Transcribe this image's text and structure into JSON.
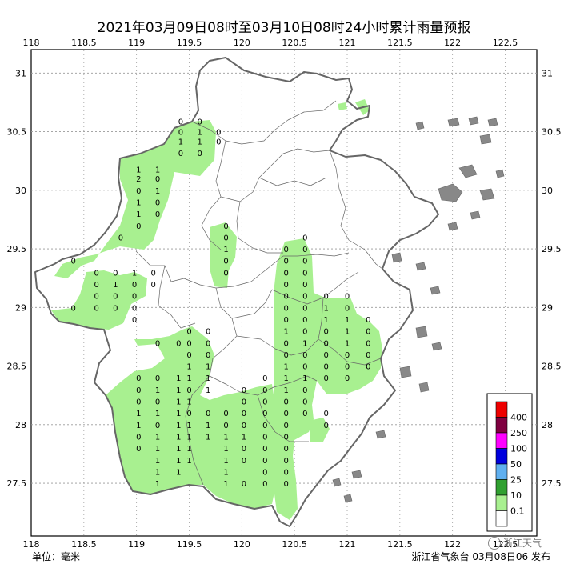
{
  "title": "2021年03月09日08时至03月10日08时24小时累计雨量预报",
  "unit_label": "单位：毫米",
  "issuer": "浙江省气象台 03月08日06 发布",
  "watermark": "浙江天气",
  "lon_ticks": [
    "118",
    "118.5",
    "119",
    "119.5",
    "120",
    "120.5",
    "121",
    "121.5",
    "122",
    "122.5"
  ],
  "lon_values": [
    118,
    118.5,
    119,
    119.5,
    120,
    120.5,
    121,
    121.5,
    122,
    122.5
  ],
  "lat_ticks": [
    "31",
    "30.5",
    "30",
    "29.5",
    "29",
    "28.5",
    "28",
    "27.5"
  ],
  "lat_values": [
    31,
    30.5,
    30,
    29.5,
    29,
    28.5,
    28,
    27.5
  ],
  "legend": {
    "labels": [
      "400",
      "250",
      "100",
      "50",
      "25",
      "10",
      "0.1"
    ],
    "colors": [
      "#ee0000",
      "#7f0040",
      "#ff00ff",
      "#0000dd",
      "#60b0f0",
      "#30a030",
      "#a8f090",
      "#ffffff"
    ]
  },
  "colors": {
    "rain_light": "#a8f090",
    "border": "#666666",
    "grid": "#9a9a9a"
  },
  "chart_data": {
    "type": "map",
    "xlim": [
      118,
      122.8
    ],
    "ylim": [
      27.05,
      31.2
    ],
    "values": [
      {
        "lon": 119.42,
        "lat": 30.59,
        "v": "0"
      },
      {
        "lon": 119.6,
        "lat": 30.59,
        "v": "0"
      },
      {
        "lon": 119.42,
        "lat": 30.5,
        "v": "0"
      },
      {
        "lon": 119.6,
        "lat": 30.5,
        "v": "1"
      },
      {
        "lon": 119.78,
        "lat": 30.5,
        "v": "0"
      },
      {
        "lon": 119.42,
        "lat": 30.42,
        "v": "1"
      },
      {
        "lon": 119.6,
        "lat": 30.42,
        "v": "1"
      },
      {
        "lon": 119.78,
        "lat": 30.42,
        "v": "0"
      },
      {
        "lon": 119.42,
        "lat": 30.32,
        "v": "0"
      },
      {
        "lon": 119.6,
        "lat": 30.32,
        "v": "0"
      },
      {
        "lon": 119.02,
        "lat": 30.18,
        "v": "1"
      },
      {
        "lon": 119.2,
        "lat": 30.18,
        "v": "1"
      },
      {
        "lon": 119.02,
        "lat": 30.1,
        "v": "2"
      },
      {
        "lon": 119.2,
        "lat": 30.1,
        "v": "0"
      },
      {
        "lon": 119.02,
        "lat": 30.0,
        "v": "0"
      },
      {
        "lon": 119.2,
        "lat": 30.0,
        "v": "1"
      },
      {
        "lon": 119.02,
        "lat": 29.9,
        "v": "1"
      },
      {
        "lon": 119.2,
        "lat": 29.9,
        "v": "0"
      },
      {
        "lon": 119.02,
        "lat": 29.8,
        "v": "1"
      },
      {
        "lon": 119.2,
        "lat": 29.8,
        "v": "0"
      },
      {
        "lon": 119.02,
        "lat": 29.7,
        "v": "0"
      },
      {
        "lon": 118.85,
        "lat": 29.6,
        "v": "0"
      },
      {
        "lon": 119.85,
        "lat": 29.7,
        "v": "0"
      },
      {
        "lon": 119.85,
        "lat": 29.6,
        "v": "0"
      },
      {
        "lon": 119.85,
        "lat": 29.5,
        "v": "1"
      },
      {
        "lon": 119.85,
        "lat": 29.4,
        "v": "0"
      },
      {
        "lon": 119.85,
        "lat": 29.3,
        "v": "0"
      },
      {
        "lon": 118.4,
        "lat": 29.4,
        "v": "0"
      },
      {
        "lon": 118.62,
        "lat": 29.3,
        "v": "0"
      },
      {
        "lon": 118.8,
        "lat": 29.3,
        "v": "0"
      },
      {
        "lon": 118.98,
        "lat": 29.3,
        "v": "1"
      },
      {
        "lon": 119.16,
        "lat": 29.3,
        "v": "0"
      },
      {
        "lon": 118.62,
        "lat": 29.2,
        "v": "0"
      },
      {
        "lon": 118.8,
        "lat": 29.2,
        "v": "1"
      },
      {
        "lon": 118.98,
        "lat": 29.2,
        "v": "0"
      },
      {
        "lon": 119.16,
        "lat": 29.2,
        "v": "0"
      },
      {
        "lon": 118.62,
        "lat": 29.1,
        "v": "0"
      },
      {
        "lon": 118.8,
        "lat": 29.1,
        "v": "0"
      },
      {
        "lon": 118.98,
        "lat": 29.1,
        "v": "0"
      },
      {
        "lon": 118.4,
        "lat": 29.0,
        "v": "0"
      },
      {
        "lon": 118.62,
        "lat": 29.0,
        "v": "0"
      },
      {
        "lon": 118.8,
        "lat": 29.0,
        "v": "0"
      },
      {
        "lon": 118.98,
        "lat": 29.0,
        "v": "0"
      },
      {
        "lon": 118.98,
        "lat": 28.9,
        "v": "0"
      },
      {
        "lon": 120.6,
        "lat": 29.6,
        "v": "0"
      },
      {
        "lon": 120.42,
        "lat": 29.5,
        "v": "0"
      },
      {
        "lon": 120.6,
        "lat": 29.5,
        "v": "0"
      },
      {
        "lon": 120.42,
        "lat": 29.4,
        "v": "0"
      },
      {
        "lon": 120.6,
        "lat": 29.4,
        "v": "0"
      },
      {
        "lon": 120.42,
        "lat": 29.3,
        "v": "0"
      },
      {
        "lon": 120.6,
        "lat": 29.3,
        "v": "0"
      },
      {
        "lon": 120.42,
        "lat": 29.2,
        "v": "0"
      },
      {
        "lon": 120.6,
        "lat": 29.2,
        "v": "0"
      },
      {
        "lon": 120.42,
        "lat": 29.1,
        "v": "0"
      },
      {
        "lon": 120.6,
        "lat": 29.1,
        "v": "0"
      },
      {
        "lon": 120.8,
        "lat": 29.1,
        "v": "0"
      },
      {
        "lon": 121.0,
        "lat": 29.1,
        "v": "0"
      },
      {
        "lon": 120.42,
        "lat": 29.0,
        "v": "0"
      },
      {
        "lon": 120.6,
        "lat": 29.0,
        "v": "0"
      },
      {
        "lon": 120.8,
        "lat": 29.0,
        "v": "1"
      },
      {
        "lon": 121.0,
        "lat": 29.0,
        "v": "0"
      },
      {
        "lon": 120.42,
        "lat": 28.9,
        "v": "0"
      },
      {
        "lon": 120.6,
        "lat": 28.9,
        "v": "0"
      },
      {
        "lon": 120.8,
        "lat": 28.9,
        "v": "1"
      },
      {
        "lon": 121.0,
        "lat": 28.9,
        "v": "1"
      },
      {
        "lon": 121.2,
        "lat": 28.9,
        "v": "0"
      },
      {
        "lon": 119.5,
        "lat": 28.8,
        "v": "0"
      },
      {
        "lon": 119.68,
        "lat": 28.8,
        "v": "0"
      },
      {
        "lon": 119.2,
        "lat": 28.7,
        "v": "0"
      },
      {
        "lon": 119.4,
        "lat": 28.7,
        "v": "0"
      },
      {
        "lon": 119.5,
        "lat": 28.7,
        "v": "0"
      },
      {
        "lon": 119.68,
        "lat": 28.7,
        "v": "0"
      },
      {
        "lon": 120.42,
        "lat": 28.8,
        "v": "1"
      },
      {
        "lon": 120.6,
        "lat": 28.8,
        "v": "0"
      },
      {
        "lon": 120.8,
        "lat": 28.8,
        "v": "0"
      },
      {
        "lon": 121.0,
        "lat": 28.8,
        "v": "1"
      },
      {
        "lon": 121.2,
        "lat": 28.8,
        "v": "0"
      },
      {
        "lon": 120.42,
        "lat": 28.7,
        "v": "0"
      },
      {
        "lon": 120.6,
        "lat": 28.7,
        "v": "1"
      },
      {
        "lon": 120.8,
        "lat": 28.7,
        "v": "0"
      },
      {
        "lon": 121.0,
        "lat": 28.7,
        "v": "1"
      },
      {
        "lon": 121.2,
        "lat": 28.7,
        "v": "0"
      },
      {
        "lon": 119.5,
        "lat": 28.6,
        "v": "0"
      },
      {
        "lon": 119.68,
        "lat": 28.6,
        "v": "0"
      },
      {
        "lon": 120.42,
        "lat": 28.6,
        "v": "0"
      },
      {
        "lon": 120.6,
        "lat": 28.6,
        "v": "0"
      },
      {
        "lon": 120.8,
        "lat": 28.6,
        "v": "0"
      },
      {
        "lon": 121.0,
        "lat": 28.6,
        "v": "0"
      },
      {
        "lon": 121.2,
        "lat": 28.6,
        "v": "0"
      },
      {
        "lon": 119.5,
        "lat": 28.5,
        "v": "1"
      },
      {
        "lon": 119.68,
        "lat": 28.5,
        "v": "1"
      },
      {
        "lon": 120.42,
        "lat": 28.5,
        "v": "1"
      },
      {
        "lon": 120.6,
        "lat": 28.5,
        "v": "0"
      },
      {
        "lon": 120.8,
        "lat": 28.5,
        "v": "0"
      },
      {
        "lon": 121.0,
        "lat": 28.5,
        "v": "0"
      },
      {
        "lon": 121.2,
        "lat": 28.5,
        "v": "0"
      },
      {
        "lon": 119.02,
        "lat": 28.4,
        "v": "0"
      },
      {
        "lon": 119.2,
        "lat": 28.4,
        "v": "0"
      },
      {
        "lon": 119.4,
        "lat": 28.4,
        "v": "1"
      },
      {
        "lon": 119.5,
        "lat": 28.4,
        "v": "1"
      },
      {
        "lon": 119.68,
        "lat": 28.4,
        "v": "1"
      },
      {
        "lon": 120.22,
        "lat": 28.4,
        "v": "0"
      },
      {
        "lon": 120.42,
        "lat": 28.4,
        "v": "1"
      },
      {
        "lon": 120.6,
        "lat": 28.4,
        "v": "1"
      },
      {
        "lon": 120.8,
        "lat": 28.4,
        "v": "0"
      },
      {
        "lon": 121.0,
        "lat": 28.4,
        "v": "0"
      },
      {
        "lon": 119.02,
        "lat": 28.3,
        "v": "0"
      },
      {
        "lon": 119.2,
        "lat": 28.3,
        "v": "1"
      },
      {
        "lon": 119.4,
        "lat": 28.3,
        "v": "1"
      },
      {
        "lon": 119.5,
        "lat": 28.3,
        "v": "0"
      },
      {
        "lon": 119.68,
        "lat": 28.3,
        "v": "1"
      },
      {
        "lon": 120.02,
        "lat": 28.3,
        "v": "0"
      },
      {
        "lon": 120.22,
        "lat": 28.3,
        "v": "0"
      },
      {
        "lon": 120.42,
        "lat": 28.3,
        "v": "1"
      },
      {
        "lon": 120.6,
        "lat": 28.3,
        "v": "0"
      },
      {
        "lon": 119.02,
        "lat": 28.2,
        "v": "0"
      },
      {
        "lon": 119.2,
        "lat": 28.2,
        "v": "0"
      },
      {
        "lon": 119.4,
        "lat": 28.2,
        "v": "1"
      },
      {
        "lon": 119.5,
        "lat": 28.2,
        "v": "1"
      },
      {
        "lon": 120.02,
        "lat": 28.2,
        "v": "0"
      },
      {
        "lon": 120.22,
        "lat": 28.2,
        "v": "0"
      },
      {
        "lon": 120.42,
        "lat": 28.2,
        "v": "0"
      },
      {
        "lon": 120.6,
        "lat": 28.2,
        "v": "0"
      },
      {
        "lon": 119.02,
        "lat": 28.1,
        "v": "1"
      },
      {
        "lon": 119.2,
        "lat": 28.1,
        "v": "1"
      },
      {
        "lon": 119.4,
        "lat": 28.1,
        "v": "1"
      },
      {
        "lon": 119.5,
        "lat": 28.1,
        "v": "0"
      },
      {
        "lon": 119.68,
        "lat": 28.1,
        "v": "0"
      },
      {
        "lon": 119.85,
        "lat": 28.1,
        "v": "0"
      },
      {
        "lon": 120.02,
        "lat": 28.1,
        "v": "0"
      },
      {
        "lon": 120.22,
        "lat": 28.1,
        "v": "0"
      },
      {
        "lon": 120.42,
        "lat": 28.1,
        "v": "0"
      },
      {
        "lon": 120.6,
        "lat": 28.1,
        "v": "0"
      },
      {
        "lon": 120.8,
        "lat": 28.1,
        "v": "0"
      },
      {
        "lon": 119.02,
        "lat": 28.0,
        "v": "1"
      },
      {
        "lon": 119.2,
        "lat": 28.0,
        "v": "0"
      },
      {
        "lon": 119.4,
        "lat": 28.0,
        "v": "1"
      },
      {
        "lon": 119.5,
        "lat": 28.0,
        "v": "1"
      },
      {
        "lon": 119.68,
        "lat": 28.0,
        "v": "1"
      },
      {
        "lon": 119.85,
        "lat": 28.0,
        "v": "0"
      },
      {
        "lon": 120.02,
        "lat": 28.0,
        "v": "0"
      },
      {
        "lon": 120.22,
        "lat": 28.0,
        "v": "0"
      },
      {
        "lon": 120.42,
        "lat": 28.0,
        "v": "0"
      },
      {
        "lon": 120.8,
        "lat": 28.0,
        "v": "0"
      },
      {
        "lon": 119.02,
        "lat": 27.9,
        "v": "0"
      },
      {
        "lon": 119.2,
        "lat": 27.9,
        "v": "1"
      },
      {
        "lon": 119.4,
        "lat": 27.9,
        "v": "1"
      },
      {
        "lon": 119.5,
        "lat": 27.9,
        "v": "1"
      },
      {
        "lon": 119.68,
        "lat": 27.9,
        "v": "1"
      },
      {
        "lon": 119.85,
        "lat": 27.9,
        "v": "1"
      },
      {
        "lon": 120.02,
        "lat": 27.9,
        "v": "1"
      },
      {
        "lon": 120.22,
        "lat": 27.9,
        "v": "0"
      },
      {
        "lon": 120.42,
        "lat": 27.9,
        "v": "0"
      },
      {
        "lon": 119.02,
        "lat": 27.8,
        "v": "0"
      },
      {
        "lon": 119.2,
        "lat": 27.8,
        "v": "1"
      },
      {
        "lon": 119.4,
        "lat": 27.8,
        "v": "1"
      },
      {
        "lon": 119.5,
        "lat": 27.8,
        "v": "1"
      },
      {
        "lon": 119.85,
        "lat": 27.8,
        "v": "1"
      },
      {
        "lon": 120.02,
        "lat": 27.8,
        "v": "0"
      },
      {
        "lon": 120.22,
        "lat": 27.8,
        "v": "0"
      },
      {
        "lon": 120.42,
        "lat": 27.8,
        "v": "0"
      },
      {
        "lon": 119.2,
        "lat": 27.7,
        "v": "1"
      },
      {
        "lon": 119.4,
        "lat": 27.7,
        "v": "1"
      },
      {
        "lon": 119.5,
        "lat": 27.7,
        "v": "1"
      },
      {
        "lon": 119.85,
        "lat": 27.7,
        "v": "1"
      },
      {
        "lon": 120.02,
        "lat": 27.7,
        "v": "0"
      },
      {
        "lon": 120.22,
        "lat": 27.7,
        "v": "0"
      },
      {
        "lon": 120.42,
        "lat": 27.7,
        "v": "0"
      },
      {
        "lon": 119.2,
        "lat": 27.6,
        "v": "1"
      },
      {
        "lon": 119.4,
        "lat": 27.6,
        "v": "1"
      },
      {
        "lon": 119.85,
        "lat": 27.6,
        "v": "1"
      },
      {
        "lon": 120.22,
        "lat": 27.6,
        "v": "0"
      },
      {
        "lon": 120.42,
        "lat": 27.6,
        "v": "0"
      },
      {
        "lon": 119.2,
        "lat": 27.5,
        "v": "1"
      },
      {
        "lon": 119.85,
        "lat": 27.5,
        "v": "1"
      },
      {
        "lon": 120.02,
        "lat": 27.5,
        "v": "0"
      },
      {
        "lon": 120.22,
        "lat": 27.5,
        "v": "0"
      },
      {
        "lon": 120.42,
        "lat": 27.5,
        "v": "0"
      }
    ]
  }
}
